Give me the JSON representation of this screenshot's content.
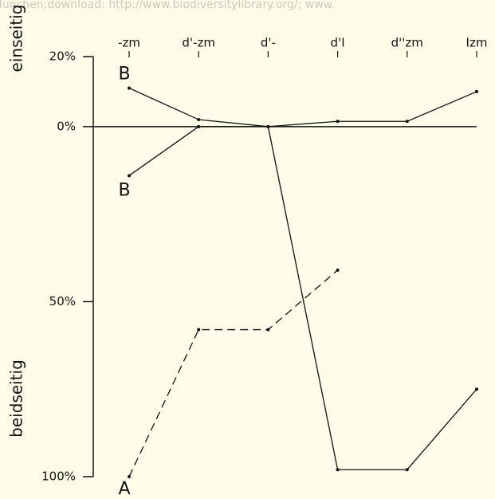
{
  "watermark": "ang München;download: http://www.biodiversitylibrary.org/; www.",
  "chart_data": {
    "type": "line",
    "ylabel_top": "einseitig",
    "ylabel_bottom": "beidseitig",
    "categories": [
      "-zm",
      "d'-zm",
      "d'-",
      "d'I",
      "d''zm",
      "Izm"
    ],
    "series": [
      {
        "name": "B",
        "color": "#111111",
        "style": "solid",
        "values": [
          11,
          2,
          0,
          1.5,
          1.5,
          10
        ]
      },
      {
        "name": "B",
        "color": "#111111",
        "style": "solid",
        "values": [
          -14,
          0,
          0,
          -98,
          -98,
          -75
        ]
      },
      {
        "name": "A",
        "color": "#111111",
        "style": "dashed",
        "values": [
          -100,
          -58,
          -58,
          -41,
          null,
          null
        ]
      }
    ],
    "ylim": [
      -100,
      20
    ],
    "yticks": [
      {
        "value": 20,
        "label": "20%"
      },
      {
        "value": 0,
        "label": "0%"
      },
      {
        "value": -50,
        "label": "50%"
      },
      {
        "value": -100,
        "label": "100%"
      }
    ]
  }
}
